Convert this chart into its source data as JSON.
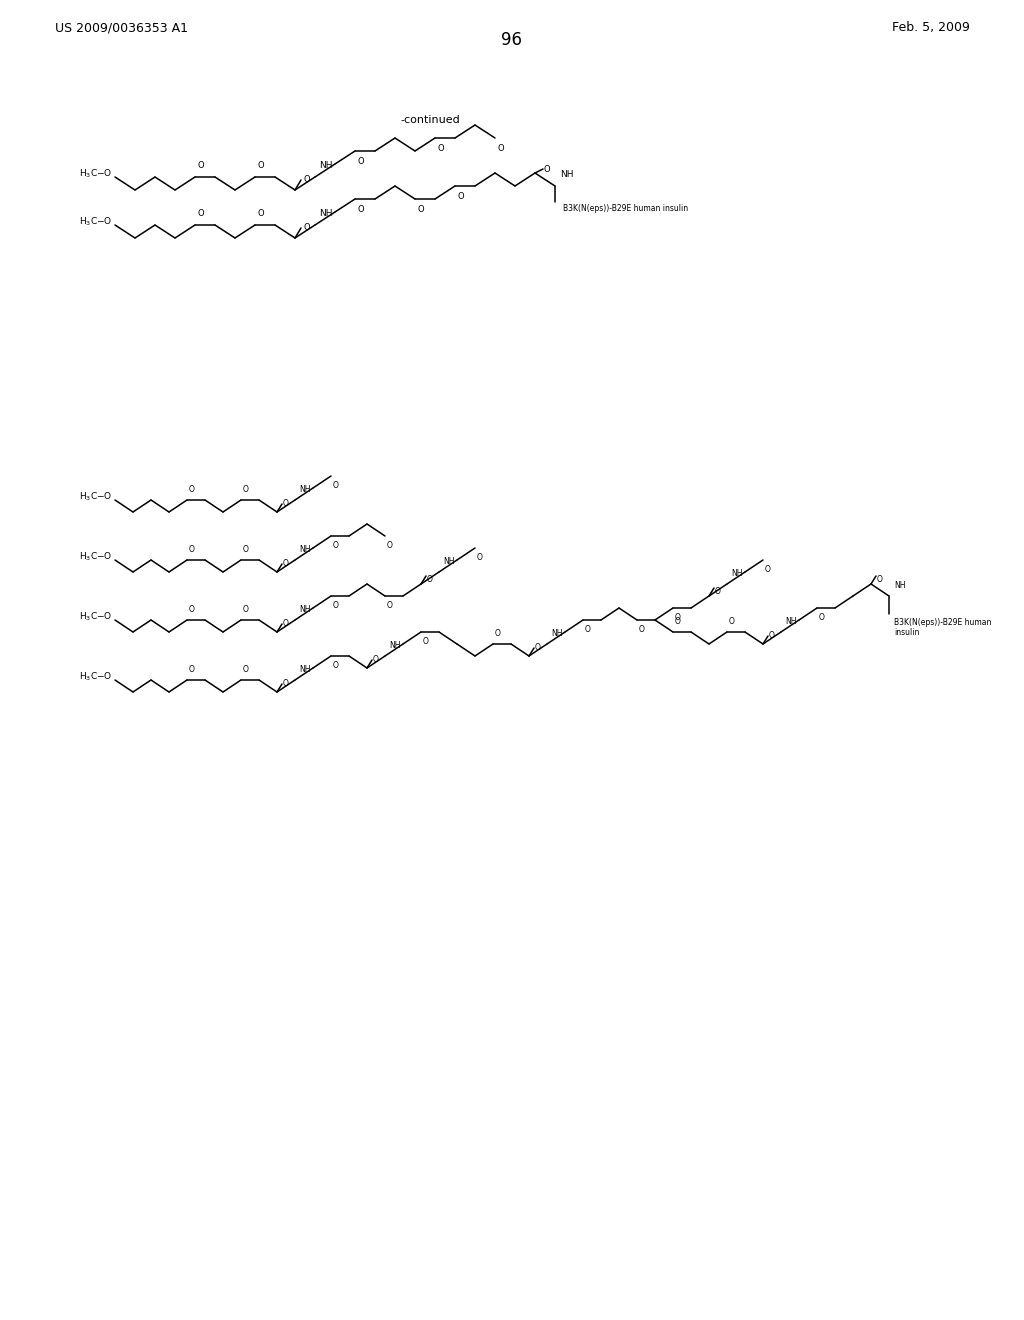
{
  "page_number": "96",
  "patent_left": "US 2009/0036353 A1",
  "patent_right": "Feb. 5, 2009",
  "continued_label": "-continued",
  "background_color": "#ffffff",
  "insulin_label_1": "B3K(N(eps))-B29E human insulin",
  "insulin_label_2": "B3K(N(eps))-B29E human\ninsulin"
}
